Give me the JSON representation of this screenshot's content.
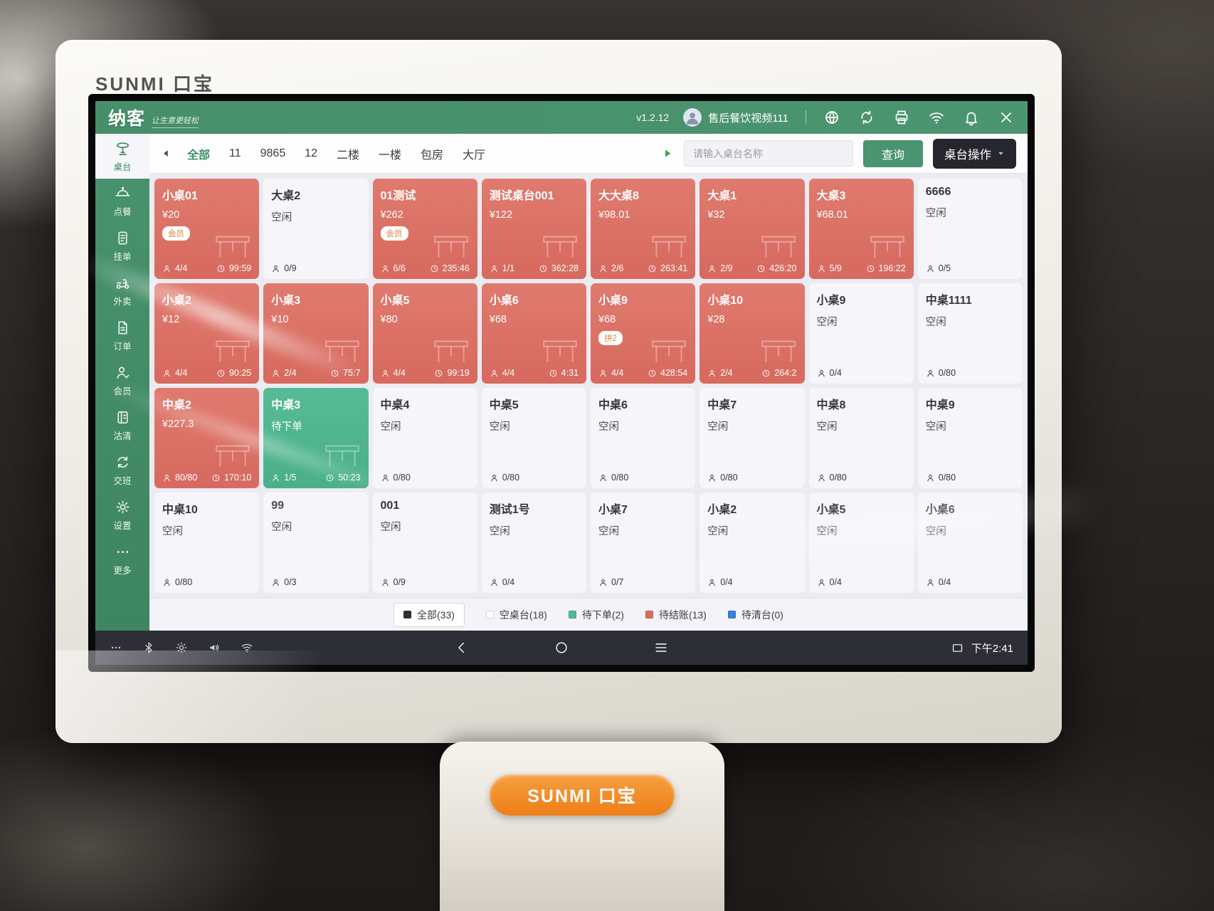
{
  "device": {
    "brand": "SUNMI 口宝"
  },
  "colors": {
    "accent_green": "#4a9471",
    "occupied_red": "#db6e63",
    "pending_teal": "#4fb592",
    "idle_card": "#f5f5fa",
    "dark_button": "#26262e",
    "navbar_bg": "#2e2e37",
    "stand_orange": "#ee7d17",
    "legend_all": "#2f2f38",
    "legend_pending": "#4fba93",
    "legend_billing": "#dd6b60",
    "legend_clear": "#3b82dd"
  },
  "header": {
    "logo": "纳客",
    "slogan": "让生意更轻松",
    "version": "v1.2.12",
    "user": "售后餐饮视频111",
    "icons": [
      {
        "icon": "globe-icon",
        "name": "globe-button"
      },
      {
        "icon": "sync-icon",
        "name": "sync-button"
      },
      {
        "icon": "printer-icon",
        "name": "printer-button"
      },
      {
        "icon": "wifi-icon",
        "name": "wifi-button"
      },
      {
        "icon": "bell-icon",
        "name": "notifications-button"
      },
      {
        "icon": "close-icon",
        "name": "close-button"
      }
    ]
  },
  "filter": {
    "tabs": [
      {
        "label": "全部",
        "active": true,
        "name": "tab-all"
      },
      {
        "label": "11",
        "name": "tab-11"
      },
      {
        "label": "9865",
        "name": "tab-9865"
      },
      {
        "label": "12",
        "name": "tab-12"
      },
      {
        "label": "二楼",
        "name": "tab-floor-2"
      },
      {
        "label": "一楼",
        "name": "tab-floor-1"
      },
      {
        "label": "包房",
        "name": "tab-private-room"
      },
      {
        "label": "大厅",
        "name": "tab-hall"
      }
    ],
    "search_placeholder": "请输入桌台名称",
    "search_button": "查询",
    "ops_button": "桌台操作"
  },
  "sidebar": {
    "items": [
      {
        "label": "桌台",
        "icon": "table-icon",
        "active": true,
        "name": "sidebar-item-tables"
      },
      {
        "label": "点餐",
        "icon": "cloche-icon",
        "name": "sidebar-item-ordering"
      },
      {
        "label": "挂单",
        "icon": "hold-order-icon",
        "name": "sidebar-item-hold-orders"
      },
      {
        "label": "外卖",
        "icon": "scooter-icon",
        "name": "sidebar-item-delivery"
      },
      {
        "label": "订单",
        "icon": "document-icon",
        "name": "sidebar-item-orders"
      },
      {
        "label": "会员",
        "icon": "member-icon",
        "name": "sidebar-item-members"
      },
      {
        "label": "沽清",
        "icon": "soldout-icon",
        "name": "sidebar-item-soldout"
      },
      {
        "label": "交班",
        "icon": "shift-icon",
        "name": "sidebar-item-shift"
      },
      {
        "label": "设置",
        "icon": "settings-icon",
        "name": "sidebar-item-settings"
      },
      {
        "label": "更多",
        "icon": "more-icon",
        "name": "sidebar-item-more"
      }
    ]
  },
  "tables": [
    {
      "name": "小桌01",
      "status": "occupied",
      "sub": "¥20",
      "badge": "会员",
      "occ": "4/4",
      "time": "99:59"
    },
    {
      "name": "大桌2",
      "status": "idle",
      "sub": "空闲",
      "occ": "0/9"
    },
    {
      "name": "01测试",
      "status": "occupied",
      "sub": "¥262",
      "badge": "会员",
      "occ": "6/6",
      "time": "235:46"
    },
    {
      "name": "测试桌台001",
      "status": "occupied",
      "sub": "¥122",
      "occ": "1/1",
      "time": "362:28"
    },
    {
      "name": "大大桌8",
      "status": "occupied",
      "sub": "¥98.01",
      "occ": "2/6",
      "time": "263:41"
    },
    {
      "name": "大桌1",
      "status": "occupied",
      "sub": "¥32",
      "occ": "2/9",
      "time": "426:20"
    },
    {
      "name": "大桌3",
      "status": "occupied",
      "sub": "¥68.01",
      "occ": "5/9",
      "time": "196:22"
    },
    {
      "name": "6666",
      "status": "idle",
      "sub": "空闲",
      "occ": "0/5"
    },
    {
      "name": "小桌2",
      "status": "occupied",
      "sub": "¥12",
      "occ": "4/4",
      "time": "90:25"
    },
    {
      "name": "小桌3",
      "status": "occupied",
      "sub": "¥10",
      "occ": "2/4",
      "time": "75:7"
    },
    {
      "name": "小桌5",
      "status": "occupied",
      "sub": "¥80",
      "occ": "4/4",
      "time": "99:19"
    },
    {
      "name": "小桌6",
      "status": "occupied",
      "sub": "¥68",
      "occ": "4/4",
      "time": "4:31"
    },
    {
      "name": "小桌9",
      "status": "occupied",
      "sub": "¥68",
      "badge": "拼2",
      "occ": "4/4",
      "time": "428:54"
    },
    {
      "name": "小桌10",
      "status": "occupied",
      "sub": "¥28",
      "occ": "2/4",
      "time": "264:2"
    },
    {
      "name": "小桌9",
      "status": "idle",
      "sub": "空闲",
      "occ": "0/4"
    },
    {
      "name": "中桌1111",
      "status": "idle",
      "sub": "空闲",
      "occ": "0/80"
    },
    {
      "name": "中桌2",
      "status": "occupied",
      "sub": "¥227.3",
      "occ": "80/80",
      "time": "170:10"
    },
    {
      "name": "中桌3",
      "status": "pending",
      "sub": "待下单",
      "occ": "1/5",
      "time": "50:23"
    },
    {
      "name": "中桌4",
      "status": "idle",
      "sub": "空闲",
      "occ": "0/80"
    },
    {
      "name": "中桌5",
      "status": "idle",
      "sub": "空闲",
      "occ": "0/80"
    },
    {
      "name": "中桌6",
      "status": "idle",
      "sub": "空闲",
      "occ": "0/80"
    },
    {
      "name": "中桌7",
      "status": "idle",
      "sub": "空闲",
      "occ": "0/80"
    },
    {
      "name": "中桌8",
      "status": "idle",
      "sub": "空闲",
      "occ": "0/80"
    },
    {
      "name": "中桌9",
      "status": "idle",
      "sub": "空闲",
      "occ": "0/80"
    },
    {
      "name": "中桌10",
      "status": "idle",
      "sub": "空闲",
      "occ": "0/80"
    },
    {
      "name": "99",
      "status": "idle",
      "sub": "空闲",
      "occ": "0/3"
    },
    {
      "name": "001",
      "status": "idle",
      "sub": "空闲",
      "occ": "0/9"
    },
    {
      "name": "测试1号",
      "status": "idle",
      "sub": "空闲",
      "occ": "0/4"
    },
    {
      "name": "小桌7",
      "status": "idle",
      "sub": "空闲",
      "occ": "0/7"
    },
    {
      "name": "小桌2",
      "status": "idle",
      "sub": "空闲",
      "occ": "0/4"
    },
    {
      "name": "小桌5",
      "status": "idle",
      "sub": "空闲",
      "occ": "0/4"
    },
    {
      "name": "小桌6",
      "status": "idle",
      "sub": "空闲",
      "occ": "0/4"
    }
  ],
  "legend": {
    "items": [
      {
        "label": "全部(33)",
        "color": "#2f2f38",
        "boxed": true,
        "name": "legend-all"
      },
      {
        "label": "空桌台(18)",
        "color": "#ffffff",
        "name": "legend-empty"
      },
      {
        "label": "待下单(2)",
        "color": "#4fba93",
        "name": "legend-pending-order"
      },
      {
        "label": "待结账(13)",
        "color": "#dd6b60",
        "name": "legend-pending-bill"
      },
      {
        "label": "待清台(0)",
        "color": "#3b82dd",
        "name": "legend-pending-clear"
      }
    ]
  },
  "navbar": {
    "time": "下午2:41",
    "status_icons": [
      {
        "icon": "ellipsis-icon",
        "name": "overflow-icon"
      },
      {
        "icon": "bluetooth-icon",
        "name": "bluetooth-icon"
      },
      {
        "icon": "brightness-icon",
        "name": "brightness-icon"
      },
      {
        "icon": "volume-icon",
        "name": "volume-icon"
      },
      {
        "icon": "wifi-icon",
        "name": "wifi-status-icon"
      }
    ],
    "nav_icons": [
      {
        "icon": "back-icon",
        "name": "android-back-button"
      },
      {
        "icon": "home-icon",
        "name": "android-home-button"
      },
      {
        "icon": "recents-icon",
        "name": "android-recents-button"
      }
    ]
  }
}
